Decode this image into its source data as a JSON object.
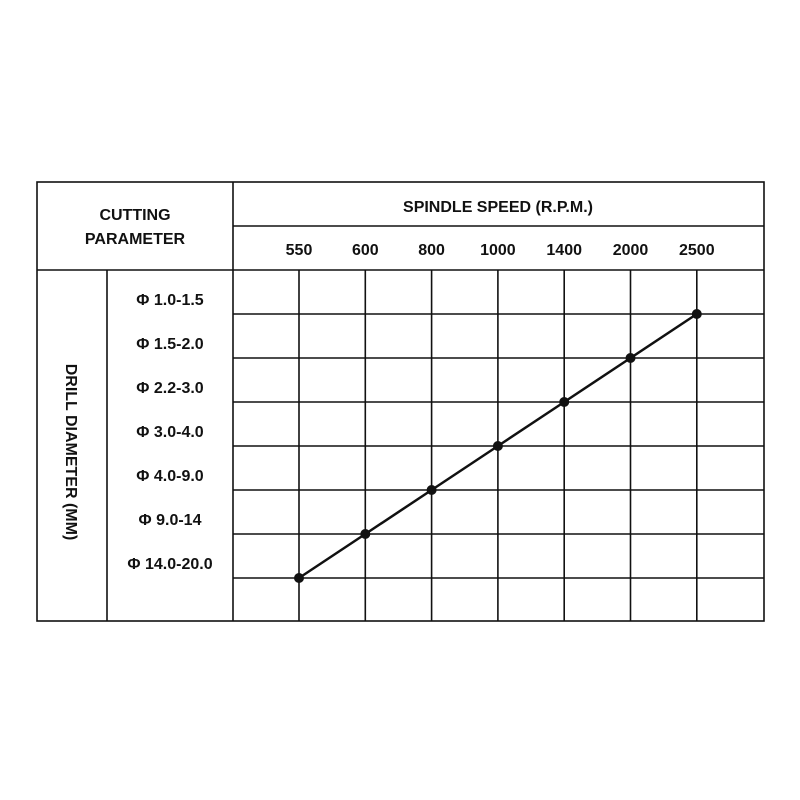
{
  "header": {
    "cutting_parameter": [
      "CUTTING",
      "PARAMETER"
    ],
    "spindle_speed": "SPINDLE SPEED (R.P.M.)"
  },
  "drill_diameter_label": "DRILL DIAMETER (MM)",
  "speeds": [
    550,
    600,
    800,
    1000,
    1400,
    2000,
    2500
  ],
  "diameters": [
    "Φ 1.0-1.5",
    "Φ 1.5-2.0",
    "Φ 2.2-3.0",
    "Φ 3.0-4.0",
    "Φ 4.0-9.0",
    "Φ 9.0-14",
    "Φ 14.0-20.0"
  ],
  "speed_for_diameter": [
    2500,
    2000,
    1400,
    1000,
    800,
    600,
    550
  ]
}
